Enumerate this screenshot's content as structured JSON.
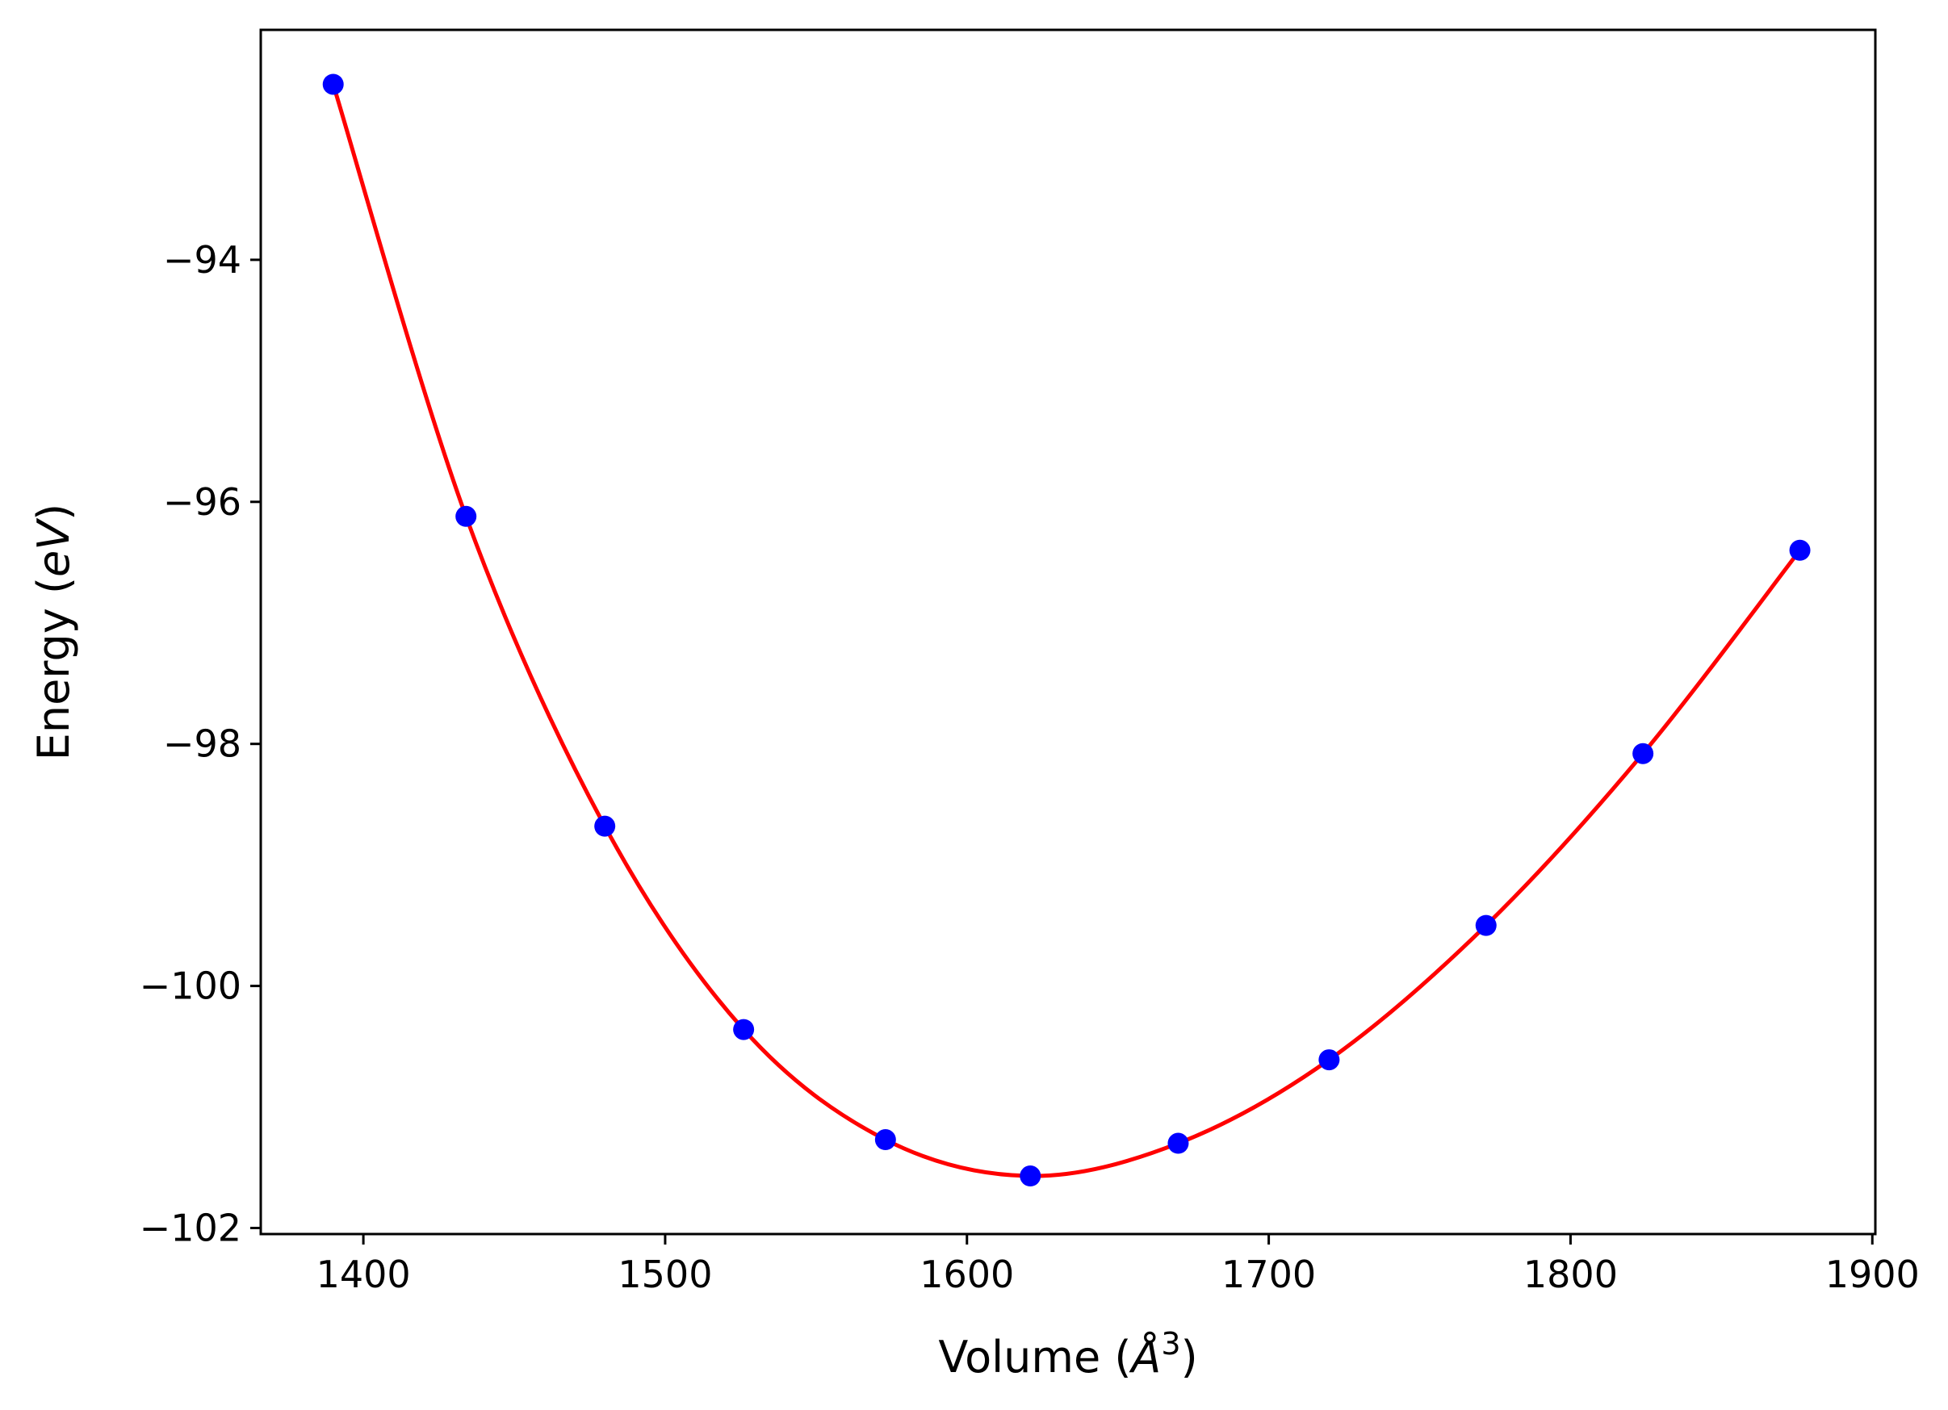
{
  "chart_data": {
    "type": "scatter",
    "title": "",
    "xlabel": {
      "prefix": "Volume (",
      "unit_symbol": "Å",
      "superscript": "3",
      "suffix": ")"
    },
    "ylabel": {
      "prefix": "Energy (",
      "unit": "eV",
      "suffix": ")"
    },
    "xlim": [
      1366,
      1901
    ],
    "ylim": [
      -102.05,
      -92.1
    ],
    "xticks": [
      1400,
      1500,
      1600,
      1700,
      1800,
      1900
    ],
    "xtick_labels": [
      "1400",
      "1500",
      "1600",
      "1700",
      "1800",
      "1900"
    ],
    "yticks": [
      -102,
      -100,
      -98,
      -96,
      -94
    ],
    "ytick_labels": [
      "−102",
      "−100",
      "−98",
      "−96",
      "−94"
    ],
    "grid": false,
    "series": [
      {
        "type": "scatter",
        "color": "#0000ff",
        "x": [
          1390,
          1434,
          1480,
          1526,
          1573,
          1621,
          1670,
          1720,
          1772,
          1824,
          1876
        ],
        "y": [
          -92.55,
          -96.12,
          -98.68,
          -100.36,
          -101.27,
          -101.57,
          -101.3,
          -100.61,
          -99.5,
          -98.08,
          -96.4
        ]
      },
      {
        "type": "line",
        "color": "#ff0000",
        "x": [
          1390,
          1434,
          1480,
          1526,
          1573,
          1621,
          1670,
          1720,
          1772,
          1824,
          1876
        ],
        "y": [
          -92.55,
          -96.12,
          -98.68,
          -100.36,
          -101.27,
          -101.57,
          -101.3,
          -100.61,
          -99.5,
          -98.08,
          -96.4
        ]
      }
    ]
  }
}
